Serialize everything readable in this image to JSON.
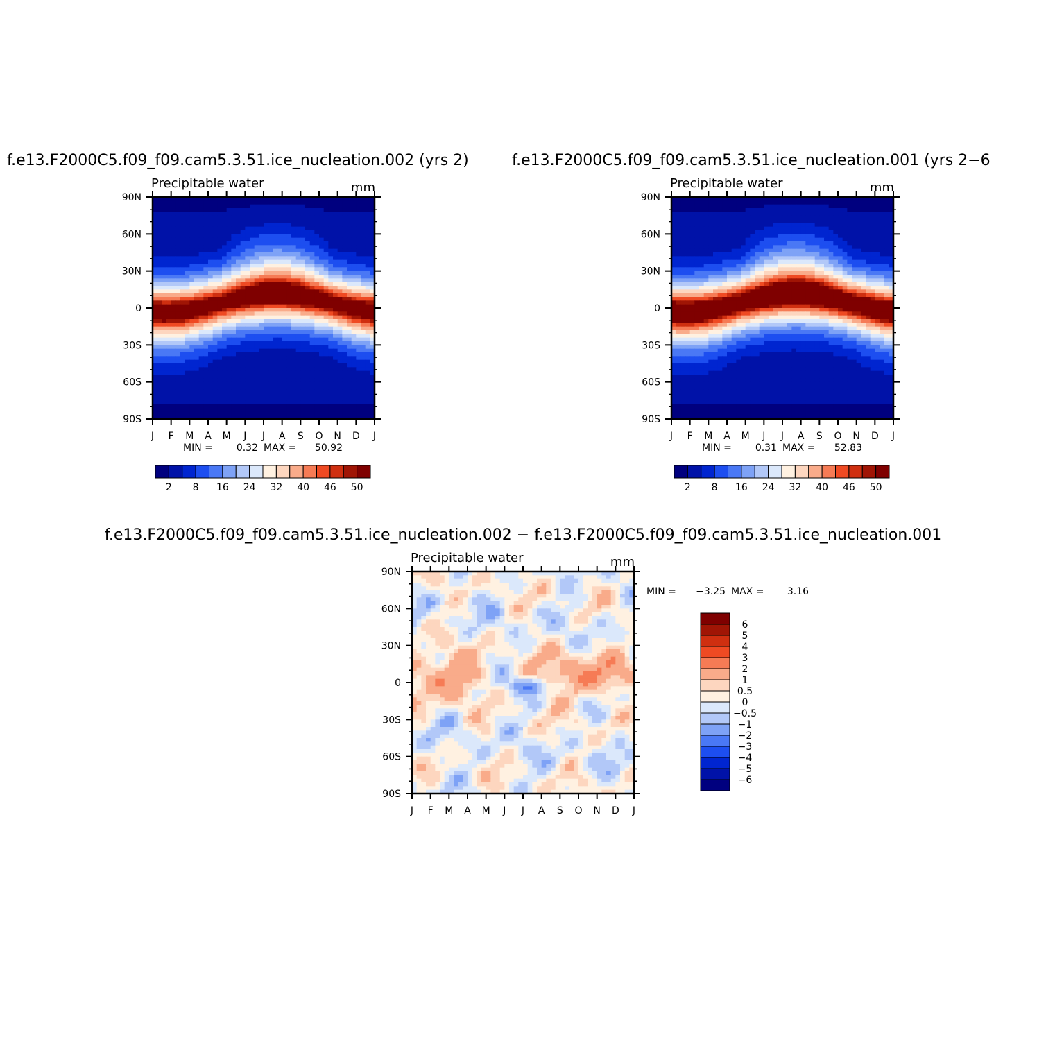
{
  "titles": {
    "left": "f.e13.F2000C5.f09_f09.cam5.3.51.ice_nucleation.002 (yrs 2)",
    "right": "f.e13.F2000C5.f09_f09.cam5.3.51.ice_nucleation.001 (yrs 2−6",
    "diff": "f.e13.F2000C5.f09_f09.cam5.3.51.ice_nucleation.002 − f.e13.F2000C5.f09_f09.cam5.3.51.ice_nucleation.001"
  },
  "chart_data": [
    {
      "type": "heatmap",
      "id": "left",
      "subtitle": "Precipitable water",
      "units": "mm",
      "x_ticks": [
        "J",
        "F",
        "M",
        "A",
        "M",
        "J",
        "J",
        "A",
        "S",
        "O",
        "N",
        "D",
        "J"
      ],
      "y_ticks": [
        "90N",
        "60N",
        "30N",
        "0",
        "30S",
        "60S",
        "90S"
      ],
      "ylim": [
        -90,
        90
      ],
      "stats": {
        "min_label": "MIN =",
        "min": "0.32",
        "max_label": "MAX =",
        "max": "50.92"
      },
      "colorbar_ticks": [
        "2",
        "8",
        "16",
        "24",
        "32",
        "40",
        "46",
        "50"
      ],
      "colors": [
        "#00007f",
        "#0012a8",
        "#0025d0",
        "#1d4ef0",
        "#4a78f5",
        "#7ea2f6",
        "#b2c8f8",
        "#dbe8fb",
        "#fff1e1",
        "#fdd6bf",
        "#f9ab8a",
        "#f67b55",
        "#ef4a23",
        "#cf2f10",
        "#a01505",
        "#7f0000"
      ],
      "levels": [
        2,
        5,
        8,
        12,
        16,
        20,
        24,
        28,
        32,
        36,
        40,
        43,
        46,
        48,
        50
      ],
      "peak": 50.92
    },
    {
      "type": "heatmap",
      "id": "right",
      "subtitle": "Precipitable water",
      "units": "mm",
      "x_ticks": [
        "J",
        "F",
        "M",
        "A",
        "M",
        "J",
        "J",
        "A",
        "S",
        "O",
        "N",
        "D",
        "J"
      ],
      "y_ticks": [
        "90N",
        "60N",
        "30N",
        "0",
        "30S",
        "60S",
        "90S"
      ],
      "ylim": [
        -90,
        90
      ],
      "stats": {
        "min_label": "MIN =",
        "min": "0.31",
        "max_label": "MAX =",
        "max": "52.83"
      },
      "colorbar_ticks": [
        "2",
        "8",
        "16",
        "24",
        "32",
        "40",
        "46",
        "50"
      ],
      "colors": [
        "#00007f",
        "#0012a8",
        "#0025d0",
        "#1d4ef0",
        "#4a78f5",
        "#7ea2f6",
        "#b2c8f8",
        "#dbe8fb",
        "#fff1e1",
        "#fdd6bf",
        "#f9ab8a",
        "#f67b55",
        "#ef4a23",
        "#cf2f10",
        "#a01505",
        "#7f0000"
      ],
      "levels": [
        2,
        5,
        8,
        12,
        16,
        20,
        24,
        28,
        32,
        36,
        40,
        43,
        46,
        48,
        50
      ],
      "peak": 52.83
    },
    {
      "type": "heatmap",
      "id": "diff",
      "subtitle": "Precipitable water",
      "units": "mm",
      "x_ticks": [
        "J",
        "F",
        "M",
        "A",
        "M",
        "J",
        "J",
        "A",
        "S",
        "O",
        "N",
        "D",
        "J"
      ],
      "y_ticks": [
        "90N",
        "60N",
        "30N",
        "0",
        "30S",
        "60S",
        "90S"
      ],
      "ylim": [
        -90,
        90
      ],
      "stats": {
        "min_label": "MIN =",
        "min": "−3.25",
        "max_label": "MAX =",
        "max": "3.16"
      },
      "colorbar_ticks": [
        "6",
        "5",
        "4",
        "3",
        "2",
        "1",
        "0.5",
        "0",
        "−0.5",
        "−1",
        "−2",
        "−3",
        "−4",
        "−5",
        "−6"
      ],
      "colors": [
        "#7f0000",
        "#a01505",
        "#cf2f10",
        "#ef4a23",
        "#f67b55",
        "#f9ab8a",
        "#fdd6bf",
        "#fff1e1",
        "#dbe8fb",
        "#b2c8f8",
        "#7ea2f6",
        "#4a78f5",
        "#1d4ef0",
        "#0025d0",
        "#0012a8",
        "#00007f"
      ],
      "levels": [
        -6,
        -5,
        -4,
        -3,
        -2,
        -1,
        -0.5,
        0,
        0.5,
        1,
        2,
        3,
        4,
        5,
        6
      ]
    }
  ]
}
